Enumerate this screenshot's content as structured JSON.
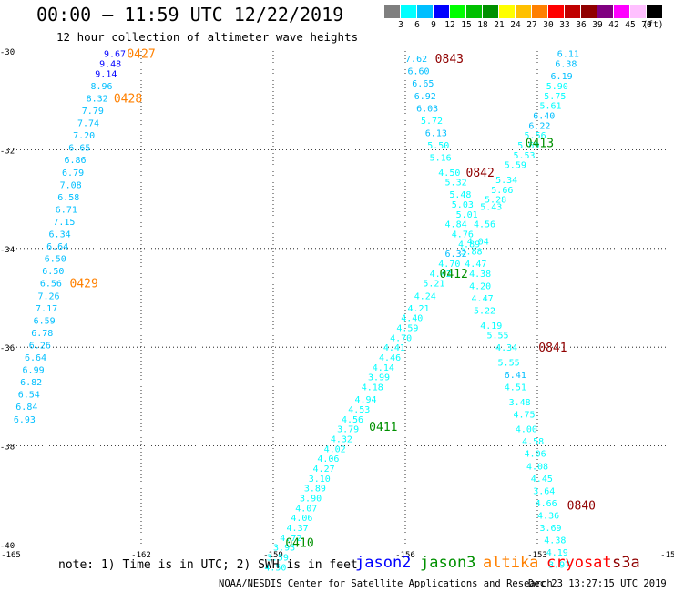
{
  "header": {
    "title": "00:00 – 11:59 UTC 12/22/2019",
    "subtitle": "12 hour collection of altimeter wave heights"
  },
  "colorbar": {
    "unit": "(ft)",
    "colors": [
      "#7f7f7f",
      "#00ffff",
      "#00bfff",
      "#0000ff",
      "#00ff00",
      "#00c000",
      "#009000",
      "#ffff00",
      "#ffc000",
      "#ff8000",
      "#ff0000",
      "#c00000",
      "#900000",
      "#800080",
      "#ff00ff",
      "#ffc0ff",
      "#000000"
    ],
    "ticks": [
      "3",
      "6",
      "9",
      "12",
      "15",
      "18",
      "21",
      "24",
      "27",
      "30",
      "33",
      "36",
      "39",
      "42",
      "45",
      "70"
    ]
  },
  "footer": {
    "note": "note: 1) Time is in UTC; 2) SWH is in feet",
    "satellites": [
      {
        "name": "jason2",
        "color": "#0000ff"
      },
      {
        "name": "jason3",
        "color": "#009000"
      },
      {
        "name": "altika",
        "color": "#ff8000"
      },
      {
        "name": "cryosat",
        "color": "#ff0000"
      },
      {
        "name": "s3a",
        "color": "#900000"
      }
    ],
    "credit": "NOAA/NESDIS Center for Satellite Applications and Research",
    "timestamp": "Dec 23 13:27:15 UTC 2019"
  },
  "chart_data": {
    "type": "scatter",
    "xlim": [
      -165,
      -150
    ],
    "ylim": [
      -40,
      -30
    ],
    "x_ticks": [
      "-165",
      "-162",
      "-159",
      "-156",
      "-153",
      "-150"
    ],
    "y_ticks": [
      "-30",
      "-32",
      "-34",
      "-36",
      "-38",
      "-40"
    ],
    "grid": true,
    "time_labels": [
      {
        "text": "0427",
        "color": "#ff8000",
        "lon": -162.0,
        "lat": -30.05
      },
      {
        "text": "0428",
        "color": "#ff8000",
        "lon": -162.3,
        "lat": -30.95
      },
      {
        "text": "0429",
        "color": "#ff8000",
        "lon": -163.3,
        "lat": -34.7
      },
      {
        "text": "0843",
        "color": "#900000",
        "lon": -155.0,
        "lat": -30.15
      },
      {
        "text": "0842",
        "color": "#900000",
        "lon": -154.3,
        "lat": -32.45
      },
      {
        "text": "0841",
        "color": "#900000",
        "lon": -152.65,
        "lat": -36.0
      },
      {
        "text": "0840",
        "color": "#900000",
        "lon": -152.0,
        "lat": -39.2
      },
      {
        "text": "0413",
        "color": "#009000",
        "lon": -152.95,
        "lat": -31.85
      },
      {
        "text": "0412",
        "color": "#009000",
        "lon": -154.9,
        "lat": -34.5
      },
      {
        "text": "0411",
        "color": "#009000",
        "lon": -156.5,
        "lat": -37.6
      },
      {
        "text": "0410",
        "color": "#009000",
        "lon": -158.4,
        "lat": -39.95
      }
    ],
    "series": [
      {
        "name": "altika",
        "points": [
          {
            "v": "9.67",
            "c": "#0000ff",
            "lon": -162.6,
            "lat": -30.05
          },
          {
            "v": "9.48",
            "c": "#0000ff",
            "lon": -162.7,
            "lat": -30.25
          },
          {
            "v": "9.14",
            "c": "#0000ff",
            "lon": -162.8,
            "lat": -30.45
          },
          {
            "v": "8.96",
            "c": "#00bfff",
            "lon": -162.9,
            "lat": -30.7
          },
          {
            "v": "8.32",
            "c": "#00bfff",
            "lon": -163.0,
            "lat": -30.95
          },
          {
            "v": "7.79",
            "c": "#00bfff",
            "lon": -163.1,
            "lat": -31.2
          },
          {
            "v": "7.74",
            "c": "#00bfff",
            "lon": -163.2,
            "lat": -31.45
          },
          {
            "v": "7.20",
            "c": "#00bfff",
            "lon": -163.3,
            "lat": -31.7
          },
          {
            "v": "6.65",
            "c": "#00bfff",
            "lon": -163.4,
            "lat": -31.95
          },
          {
            "v": "6.86",
            "c": "#00bfff",
            "lon": -163.5,
            "lat": -32.2
          },
          {
            "v": "6.79",
            "c": "#00bfff",
            "lon": -163.55,
            "lat": -32.45
          },
          {
            "v": "7.08",
            "c": "#00bfff",
            "lon": -163.6,
            "lat": -32.7
          },
          {
            "v": "6.58",
            "c": "#00bfff",
            "lon": -163.65,
            "lat": -32.95
          },
          {
            "v": "6.71",
            "c": "#00bfff",
            "lon": -163.7,
            "lat": -33.2
          },
          {
            "v": "7.15",
            "c": "#00bfff",
            "lon": -163.75,
            "lat": -33.45
          },
          {
            "v": "6.34",
            "c": "#00bfff",
            "lon": -163.85,
            "lat": -33.7
          },
          {
            "v": "6.64",
            "c": "#00bfff",
            "lon": -163.9,
            "lat": -33.95
          },
          {
            "v": "6.50",
            "c": "#00bfff",
            "lon": -163.95,
            "lat": -34.2
          },
          {
            "v": "6.50",
            "c": "#00bfff",
            "lon": -164.0,
            "lat": -34.45
          },
          {
            "v": "6.56",
            "c": "#00bfff",
            "lon": -164.05,
            "lat": -34.7
          },
          {
            "v": "7.26",
            "c": "#00bfff",
            "lon": -164.1,
            "lat": -34.95
          },
          {
            "v": "7.17",
            "c": "#00bfff",
            "lon": -164.15,
            "lat": -35.2
          },
          {
            "v": "6.59",
            "c": "#00bfff",
            "lon": -164.2,
            "lat": -35.45
          },
          {
            "v": "6.78",
            "c": "#00bfff",
            "lon": -164.25,
            "lat": -35.7
          },
          {
            "v": "6.26",
            "c": "#00bfff",
            "lon": -164.3,
            "lat": -35.95
          },
          {
            "v": "6.64",
            "c": "#00bfff",
            "lon": -164.4,
            "lat": -36.2
          },
          {
            "v": "6.99",
            "c": "#00bfff",
            "lon": -164.45,
            "lat": -36.45
          },
          {
            "v": "6.82",
            "c": "#00bfff",
            "lon": -164.5,
            "lat": -36.7
          },
          {
            "v": "6.54",
            "c": "#00bfff",
            "lon": -164.55,
            "lat": -36.95
          },
          {
            "v": "6.84",
            "c": "#00bfff",
            "lon": -164.6,
            "lat": -37.2
          },
          {
            "v": "6.93",
            "c": "#00bfff",
            "lon": -164.65,
            "lat": -37.45
          }
        ]
      },
      {
        "name": "s3a",
        "points": [
          {
            "v": "7.62",
            "c": "#00bfff",
            "lon": -155.75,
            "lat": -30.15
          },
          {
            "v": "6.60",
            "c": "#00bfff",
            "lon": -155.7,
            "lat": -30.4
          },
          {
            "v": "6.65",
            "c": "#00bfff",
            "lon": -155.6,
            "lat": -30.65
          },
          {
            "v": "6.92",
            "c": "#00bfff",
            "lon": -155.55,
            "lat": -30.9
          },
          {
            "v": "6.03",
            "c": "#00bfff",
            "lon": -155.5,
            "lat": -31.15
          },
          {
            "v": "5.72",
            "c": "#00ffff",
            "lon": -155.4,
            "lat": -31.4
          },
          {
            "v": "6.13",
            "c": "#00bfff",
            "lon": -155.3,
            "lat": -31.65
          },
          {
            "v": "5.50",
            "c": "#00ffff",
            "lon": -155.25,
            "lat": -31.9
          },
          {
            "v": "5.16",
            "c": "#00ffff",
            "lon": -155.2,
            "lat": -32.15
          },
          {
            "v": "4.50",
            "c": "#00ffff",
            "lon": -155.0,
            "lat": -32.45
          },
          {
            "v": "5.32",
            "c": "#00ffff",
            "lon": -154.85,
            "lat": -32.65
          },
          {
            "v": "5.48",
            "c": "#00ffff",
            "lon": -154.75,
            "lat": -32.9
          },
          {
            "v": "5.03",
            "c": "#00ffff",
            "lon": -154.7,
            "lat": -33.1
          },
          {
            "v": "5.01",
            "c": "#00ffff",
            "lon": -154.6,
            "lat": -33.3
          },
          {
            "v": "4.84",
            "c": "#00ffff",
            "lon": -154.85,
            "lat": -33.5
          },
          {
            "v": "4.76",
            "c": "#00ffff",
            "lon": -154.7,
            "lat": -33.7
          },
          {
            "v": "3.88",
            "c": "#00ffff",
            "lon": -154.5,
            "lat": -34.05
          },
          {
            "v": "4.47",
            "c": "#00ffff",
            "lon": -154.4,
            "lat": -34.3
          },
          {
            "v": "4.38",
            "c": "#00ffff",
            "lon": -154.3,
            "lat": -34.5
          },
          {
            "v": "4.20",
            "c": "#00ffff",
            "lon": -154.3,
            "lat": -34.75
          },
          {
            "v": "4.47",
            "c": "#00ffff",
            "lon": -154.25,
            "lat": -35.0
          },
          {
            "v": "5.22",
            "c": "#00ffff",
            "lon": -154.2,
            "lat": -35.25
          },
          {
            "v": "4.19",
            "c": "#00ffff",
            "lon": -154.05,
            "lat": -35.55
          },
          {
            "v": "5.55",
            "c": "#00ffff",
            "lon": -153.9,
            "lat": -35.75
          },
          {
            "v": "4.34",
            "c": "#00ffff",
            "lon": -153.7,
            "lat": -36.0
          },
          {
            "v": "5.55",
            "c": "#00ffff",
            "lon": -153.65,
            "lat": -36.3
          },
          {
            "v": "6.41",
            "c": "#00bfff",
            "lon": -153.5,
            "lat": -36.55
          },
          {
            "v": "4.51",
            "c": "#00ffff",
            "lon": -153.5,
            "lat": -36.8
          },
          {
            "v": "3.48",
            "c": "#00ffff",
            "lon": -153.4,
            "lat": -37.1
          },
          {
            "v": "4.75",
            "c": "#00ffff",
            "lon": -153.3,
            "lat": -37.35
          },
          {
            "v": "4.00",
            "c": "#00ffff",
            "lon": -153.25,
            "lat": -37.65
          },
          {
            "v": "4.58",
            "c": "#00ffff",
            "lon": -153.1,
            "lat": -37.9
          },
          {
            "v": "4.06",
            "c": "#00ffff",
            "lon": -153.05,
            "lat": -38.15
          },
          {
            "v": "4.08",
            "c": "#00ffff",
            "lon": -153.0,
            "lat": -38.4
          },
          {
            "v": "4.45",
            "c": "#00ffff",
            "lon": -152.9,
            "lat": -38.65
          },
          {
            "v": "3.64",
            "c": "#00ffff",
            "lon": -152.85,
            "lat": -38.9
          },
          {
            "v": "4.66",
            "c": "#00ffff",
            "lon": -152.8,
            "lat": -39.15
          },
          {
            "v": "4.36",
            "c": "#00ffff",
            "lon": -152.75,
            "lat": -39.4
          },
          {
            "v": "3.69",
            "c": "#00ffff",
            "lon": -152.7,
            "lat": -39.65
          },
          {
            "v": "4.38",
            "c": "#00ffff",
            "lon": -152.6,
            "lat": -39.9
          },
          {
            "v": "4.19",
            "c": "#00ffff",
            "lon": -152.55,
            "lat": -40.15
          },
          {
            "v": "3.97",
            "c": "#00ffff",
            "lon": -152.5,
            "lat": -40.4
          }
        ]
      },
      {
        "name": "jason3",
        "points": [
          {
            "v": "6.11",
            "c": "#00bfff",
            "lon": -152.3,
            "lat": -30.05
          },
          {
            "v": "6.38",
            "c": "#00bfff",
            "lon": -152.35,
            "lat": -30.25
          },
          {
            "v": "6.19",
            "c": "#00bfff",
            "lon": -152.45,
            "lat": -30.5
          },
          {
            "v": "5.90",
            "c": "#00ffff",
            "lon": -152.55,
            "lat": -30.7
          },
          {
            "v": "5.75",
            "c": "#00ffff",
            "lon": -152.6,
            "lat": -30.9
          },
          {
            "v": "5.61",
            "c": "#00ffff",
            "lon": -152.7,
            "lat": -31.1
          },
          {
            "v": "6.40",
            "c": "#00bfff",
            "lon": -152.85,
            "lat": -31.3
          },
          {
            "v": "6.22",
            "c": "#00bfff",
            "lon": -152.95,
            "lat": -31.5
          },
          {
            "v": "5.56",
            "c": "#00ffff",
            "lon": -153.05,
            "lat": -31.7
          },
          {
            "v": "5.69",
            "c": "#00ffff",
            "lon": -153.2,
            "lat": -31.9
          },
          {
            "v": "5.53",
            "c": "#00ffff",
            "lon": -153.3,
            "lat": -32.1
          },
          {
            "v": "5.59",
            "c": "#00ffff",
            "lon": -153.5,
            "lat": -32.3
          },
          {
            "v": "5.34",
            "c": "#00ffff",
            "lon": -153.7,
            "lat": -32.6
          },
          {
            "v": "5.66",
            "c": "#00ffff",
            "lon": -153.8,
            "lat": -32.8
          },
          {
            "v": "5.28",
            "c": "#00ffff",
            "lon": -153.95,
            "lat": -33.0
          },
          {
            "v": "5.43",
            "c": "#00ffff",
            "lon": -154.05,
            "lat": -33.15
          },
          {
            "v": "4.56",
            "c": "#00ffff",
            "lon": -154.2,
            "lat": -33.5
          },
          {
            "v": "4.04",
            "c": "#00ffff",
            "lon": -154.35,
            "lat": -33.85
          },
          {
            "v": "4.89",
            "c": "#00ffff",
            "lon": -154.55,
            "lat": -33.9
          },
          {
            "v": "6.32",
            "c": "#00bfff",
            "lon": -154.85,
            "lat": -34.1
          },
          {
            "v": "4.70",
            "c": "#00ffff",
            "lon": -155.0,
            "lat": -34.3
          },
          {
            "v": "4.42",
            "c": "#00ffff",
            "lon": -155.2,
            "lat": -34.5
          },
          {
            "v": "5.21",
            "c": "#00ffff",
            "lon": -155.35,
            "lat": -34.7
          },
          {
            "v": "4.24",
            "c": "#00ffff",
            "lon": -155.55,
            "lat": -34.95
          },
          {
            "v": "4.21",
            "c": "#00ffff",
            "lon": -155.7,
            "lat": -35.2
          },
          {
            "v": "4.40",
            "c": "#00ffff",
            "lon": -155.85,
            "lat": -35.4
          },
          {
            "v": "4.59",
            "c": "#00ffff",
            "lon": -155.95,
            "lat": -35.6
          },
          {
            "v": "4.70",
            "c": "#00ffff",
            "lon": -156.1,
            "lat": -35.8
          },
          {
            "v": "4.41",
            "c": "#00ffff",
            "lon": -156.25,
            "lat": -36.0
          },
          {
            "v": "4.46",
            "c": "#00ffff",
            "lon": -156.35,
            "lat": -36.2
          },
          {
            "v": "4.14",
            "c": "#00ffff",
            "lon": -156.5,
            "lat": -36.4
          },
          {
            "v": "3.99",
            "c": "#00ffff",
            "lon": -156.6,
            "lat": -36.6
          },
          {
            "v": "4.18",
            "c": "#00ffff",
            "lon": -156.75,
            "lat": -36.8
          },
          {
            "v": "4.94",
            "c": "#00ffff",
            "lon": -156.9,
            "lat": -37.05
          },
          {
            "v": "4.53",
            "c": "#00ffff",
            "lon": -157.05,
            "lat": -37.25
          },
          {
            "v": "4.56",
            "c": "#00ffff",
            "lon": -157.2,
            "lat": -37.45
          },
          {
            "v": "3.79",
            "c": "#00ffff",
            "lon": -157.3,
            "lat": -37.65
          },
          {
            "v": "4.32",
            "c": "#00ffff",
            "lon": -157.45,
            "lat": -37.85
          },
          {
            "v": "4.02",
            "c": "#00ffff",
            "lon": -157.6,
            "lat": -38.05
          },
          {
            "v": "4.06",
            "c": "#00ffff",
            "lon": -157.75,
            "lat": -38.25
          },
          {
            "v": "4.27",
            "c": "#00ffff",
            "lon": -157.85,
            "lat": -38.45
          },
          {
            "v": "3.10",
            "c": "#00ffff",
            "lon": -157.95,
            "lat": -38.65
          },
          {
            "v": "3.89",
            "c": "#00ffff",
            "lon": -158.05,
            "lat": -38.85
          },
          {
            "v": "3.90",
            "c": "#00ffff",
            "lon": -158.15,
            "lat": -39.05
          },
          {
            "v": "4.07",
            "c": "#00ffff",
            "lon": -158.25,
            "lat": -39.25
          },
          {
            "v": "4.06",
            "c": "#00ffff",
            "lon": -158.35,
            "lat": -39.45
          },
          {
            "v": "4.37",
            "c": "#00ffff",
            "lon": -158.45,
            "lat": -39.65
          },
          {
            "v": "4.72",
            "c": "#00ffff",
            "lon": -158.6,
            "lat": -39.85
          },
          {
            "v": "3.93",
            "c": "#00ffff",
            "lon": -158.75,
            "lat": -40.05
          },
          {
            "v": "3.59",
            "c": "#00ffff",
            "lon": -158.9,
            "lat": -40.25
          },
          {
            "v": "4.50",
            "c": "#00ffff",
            "lon": -158.95,
            "lat": -40.45
          }
        ]
      }
    ]
  }
}
